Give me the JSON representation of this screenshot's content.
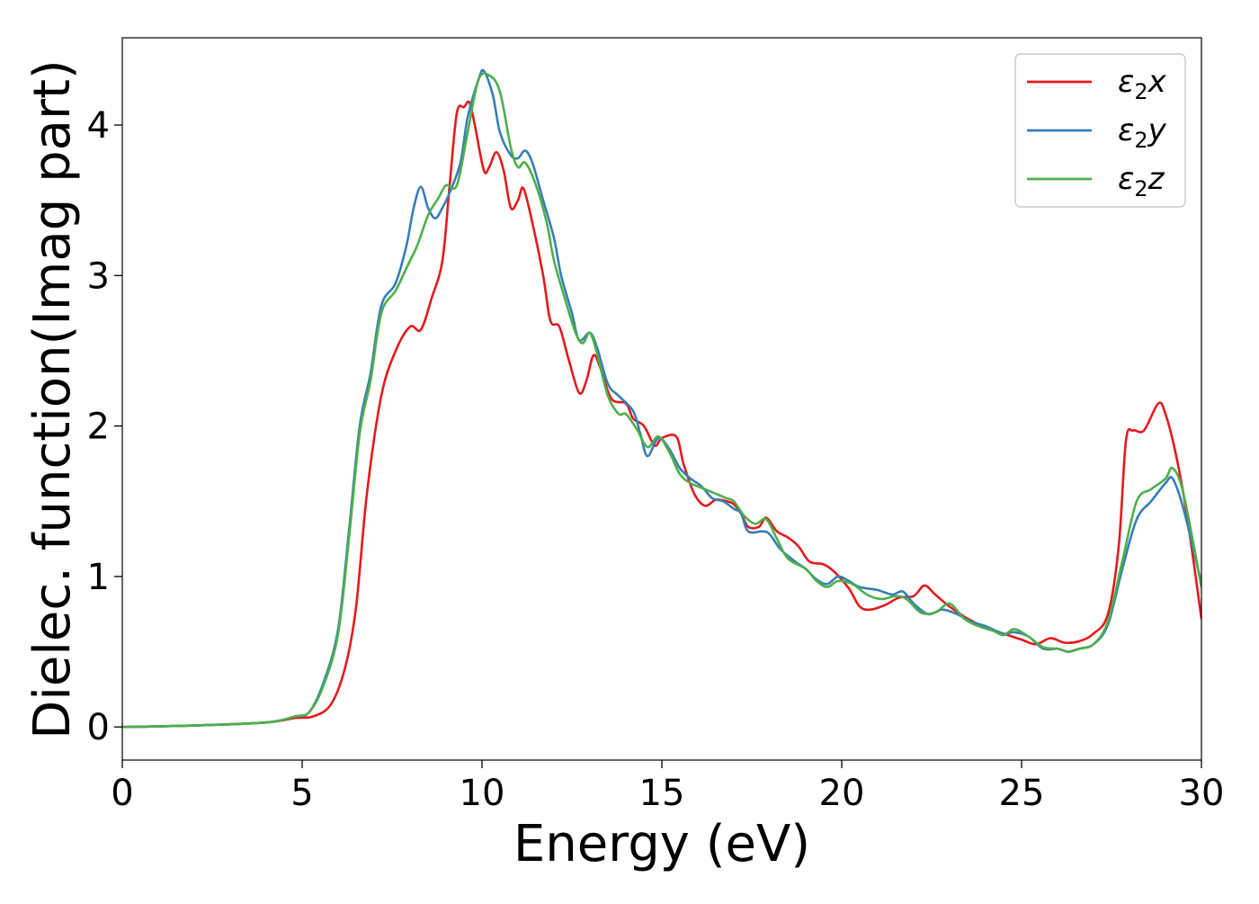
{
  "chart_data": {
    "type": "line",
    "title": "",
    "xlabel": "Energy (eV)",
    "ylabel": "Dielec. function(Imag part)",
    "xlim": [
      0,
      30
    ],
    "ylim": [
      -0.22,
      4.58
    ],
    "xticks": [
      0,
      5,
      10,
      15,
      20,
      25,
      30
    ],
    "xtick_labels": [
      "0",
      "5",
      "10",
      "15",
      "20",
      "25",
      "30"
    ],
    "yticks": [
      0,
      1,
      2,
      3,
      4
    ],
    "ytick_labels": [
      "0",
      "1",
      "2",
      "3",
      "4"
    ],
    "grid": false,
    "legend_position": "top-right",
    "series": [
      {
        "name": "ε2x",
        "legend_main": "ε",
        "legend_sub": "2",
        "legend_var": "x",
        "color": "#e41a1c",
        "points": [
          [
            0,
            0.0
          ],
          [
            2,
            0.01
          ],
          [
            4,
            0.03
          ],
          [
            4.8,
            0.06
          ],
          [
            5.3,
            0.07
          ],
          [
            5.8,
            0.15
          ],
          [
            6.2,
            0.4
          ],
          [
            6.5,
            0.8
          ],
          [
            6.8,
            1.55
          ],
          [
            7.2,
            2.2
          ],
          [
            7.6,
            2.5
          ],
          [
            8.0,
            2.66
          ],
          [
            8.3,
            2.64
          ],
          [
            8.6,
            2.85
          ],
          [
            8.9,
            3.1
          ],
          [
            9.1,
            3.6
          ],
          [
            9.3,
            4.08
          ],
          [
            9.5,
            4.12
          ],
          [
            9.65,
            4.15
          ],
          [
            9.8,
            4.0
          ],
          [
            10.05,
            3.7
          ],
          [
            10.2,
            3.72
          ],
          [
            10.4,
            3.82
          ],
          [
            10.6,
            3.7
          ],
          [
            10.8,
            3.45
          ],
          [
            11.0,
            3.5
          ],
          [
            11.15,
            3.58
          ],
          [
            11.4,
            3.35
          ],
          [
            11.7,
            3.0
          ],
          [
            11.9,
            2.7
          ],
          [
            12.15,
            2.66
          ],
          [
            12.4,
            2.45
          ],
          [
            12.7,
            2.22
          ],
          [
            12.9,
            2.3
          ],
          [
            13.1,
            2.47
          ],
          [
            13.3,
            2.38
          ],
          [
            13.6,
            2.18
          ],
          [
            14.0,
            2.15
          ],
          [
            14.2,
            2.05
          ],
          [
            14.5,
            2.0
          ],
          [
            14.8,
            1.87
          ],
          [
            15.0,
            1.92
          ],
          [
            15.4,
            1.93
          ],
          [
            15.6,
            1.75
          ],
          [
            15.9,
            1.55
          ],
          [
            16.2,
            1.47
          ],
          [
            16.5,
            1.51
          ],
          [
            16.8,
            1.5
          ],
          [
            17.0,
            1.48
          ],
          [
            17.2,
            1.42
          ],
          [
            17.4,
            1.33
          ],
          [
            17.7,
            1.33
          ],
          [
            17.9,
            1.39
          ],
          [
            18.2,
            1.3
          ],
          [
            18.5,
            1.26
          ],
          [
            18.8,
            1.2
          ],
          [
            19.1,
            1.1
          ],
          [
            19.5,
            1.08
          ],
          [
            19.8,
            1.03
          ],
          [
            20.2,
            0.92
          ],
          [
            20.5,
            0.8
          ],
          [
            20.8,
            0.78
          ],
          [
            21.2,
            0.81
          ],
          [
            21.6,
            0.86
          ],
          [
            22.0,
            0.87
          ],
          [
            22.3,
            0.94
          ],
          [
            22.6,
            0.88
          ],
          [
            23.0,
            0.8
          ],
          [
            23.5,
            0.72
          ],
          [
            24.0,
            0.66
          ],
          [
            24.5,
            0.62
          ],
          [
            25.0,
            0.58
          ],
          [
            25.4,
            0.55
          ],
          [
            25.8,
            0.59
          ],
          [
            26.2,
            0.56
          ],
          [
            26.6,
            0.57
          ],
          [
            27.0,
            0.62
          ],
          [
            27.4,
            0.75
          ],
          [
            27.7,
            1.2
          ],
          [
            27.9,
            1.9
          ],
          [
            28.1,
            1.97
          ],
          [
            28.4,
            1.97
          ],
          [
            28.8,
            2.15
          ],
          [
            29.0,
            2.08
          ],
          [
            29.3,
            1.8
          ],
          [
            29.6,
            1.4
          ],
          [
            30.0,
            0.72
          ]
        ]
      },
      {
        "name": "ε2y",
        "legend_main": "ε",
        "legend_sub": "2",
        "legend_var": "y",
        "color": "#377eb8",
        "points": [
          [
            0,
            0.0
          ],
          [
            2,
            0.01
          ],
          [
            4,
            0.03
          ],
          [
            4.8,
            0.07
          ],
          [
            5.2,
            0.1
          ],
          [
            5.6,
            0.3
          ],
          [
            6.0,
            0.65
          ],
          [
            6.3,
            1.3
          ],
          [
            6.6,
            2.0
          ],
          [
            6.9,
            2.35
          ],
          [
            7.2,
            2.8
          ],
          [
            7.6,
            2.95
          ],
          [
            7.9,
            3.2
          ],
          [
            8.1,
            3.45
          ],
          [
            8.3,
            3.59
          ],
          [
            8.5,
            3.45
          ],
          [
            8.7,
            3.38
          ],
          [
            8.9,
            3.45
          ],
          [
            9.1,
            3.55
          ],
          [
            9.4,
            3.75
          ],
          [
            9.6,
            4.05
          ],
          [
            9.9,
            4.3
          ],
          [
            10.05,
            4.36
          ],
          [
            10.3,
            4.2
          ],
          [
            10.5,
            3.95
          ],
          [
            10.8,
            3.8
          ],
          [
            11.0,
            3.78
          ],
          [
            11.2,
            3.83
          ],
          [
            11.4,
            3.75
          ],
          [
            11.7,
            3.5
          ],
          [
            12.0,
            3.25
          ],
          [
            12.2,
            3.0
          ],
          [
            12.5,
            2.75
          ],
          [
            12.7,
            2.57
          ],
          [
            13.0,
            2.62
          ],
          [
            13.2,
            2.52
          ],
          [
            13.5,
            2.28
          ],
          [
            13.8,
            2.2
          ],
          [
            14.2,
            2.1
          ],
          [
            14.4,
            1.95
          ],
          [
            14.6,
            1.8
          ],
          [
            14.9,
            1.92
          ],
          [
            15.2,
            1.85
          ],
          [
            15.5,
            1.72
          ],
          [
            15.8,
            1.65
          ],
          [
            16.1,
            1.6
          ],
          [
            16.4,
            1.52
          ],
          [
            16.7,
            1.5
          ],
          [
            17.0,
            1.45
          ],
          [
            17.2,
            1.42
          ],
          [
            17.4,
            1.3
          ],
          [
            17.8,
            1.3
          ],
          [
            18.0,
            1.28
          ],
          [
            18.3,
            1.18
          ],
          [
            18.7,
            1.1
          ],
          [
            19.0,
            1.05
          ],
          [
            19.3,
            0.98
          ],
          [
            19.6,
            0.95
          ],
          [
            19.9,
            1.0
          ],
          [
            20.2,
            0.97
          ],
          [
            20.5,
            0.93
          ],
          [
            21.0,
            0.91
          ],
          [
            21.4,
            0.88
          ],
          [
            21.7,
            0.9
          ],
          [
            22.0,
            0.82
          ],
          [
            22.4,
            0.75
          ],
          [
            22.8,
            0.78
          ],
          [
            23.2,
            0.75
          ],
          [
            23.6,
            0.7
          ],
          [
            24.0,
            0.67
          ],
          [
            24.5,
            0.62
          ],
          [
            24.8,
            0.63
          ],
          [
            25.2,
            0.6
          ],
          [
            25.6,
            0.52
          ],
          [
            26.0,
            0.52
          ],
          [
            26.3,
            0.5
          ],
          [
            26.6,
            0.52
          ],
          [
            27.0,
            0.55
          ],
          [
            27.4,
            0.68
          ],
          [
            27.8,
            1.05
          ],
          [
            28.2,
            1.38
          ],
          [
            28.6,
            1.5
          ],
          [
            29.0,
            1.62
          ],
          [
            29.2,
            1.65
          ],
          [
            29.5,
            1.45
          ],
          [
            30.0,
            0.95
          ]
        ]
      },
      {
        "name": "ε2z",
        "legend_main": "ε",
        "legend_sub": "2",
        "legend_var": "z",
        "color": "#4daf4a",
        "points": [
          [
            0,
            0.0
          ],
          [
            2,
            0.01
          ],
          [
            4,
            0.03
          ],
          [
            4.8,
            0.07
          ],
          [
            5.2,
            0.1
          ],
          [
            5.6,
            0.28
          ],
          [
            6.0,
            0.62
          ],
          [
            6.3,
            1.25
          ],
          [
            6.6,
            1.95
          ],
          [
            6.9,
            2.3
          ],
          [
            7.2,
            2.75
          ],
          [
            7.6,
            2.9
          ],
          [
            7.9,
            3.05
          ],
          [
            8.2,
            3.2
          ],
          [
            8.5,
            3.4
          ],
          [
            8.8,
            3.52
          ],
          [
            9.0,
            3.6
          ],
          [
            9.3,
            3.6
          ],
          [
            9.6,
            3.95
          ],
          [
            9.9,
            4.3
          ],
          [
            10.2,
            4.33
          ],
          [
            10.5,
            4.22
          ],
          [
            10.8,
            3.85
          ],
          [
            11.0,
            3.72
          ],
          [
            11.2,
            3.75
          ],
          [
            11.5,
            3.6
          ],
          [
            11.8,
            3.35
          ],
          [
            12.0,
            3.1
          ],
          [
            12.3,
            2.85
          ],
          [
            12.6,
            2.62
          ],
          [
            12.8,
            2.55
          ],
          [
            13.0,
            2.62
          ],
          [
            13.2,
            2.48
          ],
          [
            13.5,
            2.2
          ],
          [
            13.8,
            2.08
          ],
          [
            14.0,
            2.08
          ],
          [
            14.3,
            1.98
          ],
          [
            14.6,
            1.86
          ],
          [
            14.9,
            1.93
          ],
          [
            15.2,
            1.83
          ],
          [
            15.5,
            1.68
          ],
          [
            15.8,
            1.62
          ],
          [
            16.2,
            1.58
          ],
          [
            16.5,
            1.55
          ],
          [
            16.8,
            1.52
          ],
          [
            17.0,
            1.5
          ],
          [
            17.3,
            1.4
          ],
          [
            17.6,
            1.35
          ],
          [
            17.9,
            1.38
          ],
          [
            18.2,
            1.25
          ],
          [
            18.5,
            1.12
          ],
          [
            19.0,
            1.05
          ],
          [
            19.3,
            0.97
          ],
          [
            19.6,
            0.93
          ],
          [
            19.9,
            0.97
          ],
          [
            20.3,
            0.95
          ],
          [
            20.7,
            0.88
          ],
          [
            21.1,
            0.85
          ],
          [
            21.5,
            0.87
          ],
          [
            21.8,
            0.85
          ],
          [
            22.2,
            0.76
          ],
          [
            22.6,
            0.76
          ],
          [
            23.0,
            0.82
          ],
          [
            23.4,
            0.72
          ],
          [
            23.8,
            0.67
          ],
          [
            24.2,
            0.64
          ],
          [
            24.5,
            0.61
          ],
          [
            24.8,
            0.65
          ],
          [
            25.2,
            0.6
          ],
          [
            25.6,
            0.53
          ],
          [
            26.0,
            0.52
          ],
          [
            26.3,
            0.5
          ],
          [
            26.6,
            0.52
          ],
          [
            27.0,
            0.55
          ],
          [
            27.4,
            0.7
          ],
          [
            27.8,
            1.1
          ],
          [
            28.2,
            1.5
          ],
          [
            28.6,
            1.58
          ],
          [
            29.0,
            1.65
          ],
          [
            29.2,
            1.72
          ],
          [
            29.5,
            1.55
          ],
          [
            30.0,
            0.93
          ]
        ]
      }
    ]
  }
}
